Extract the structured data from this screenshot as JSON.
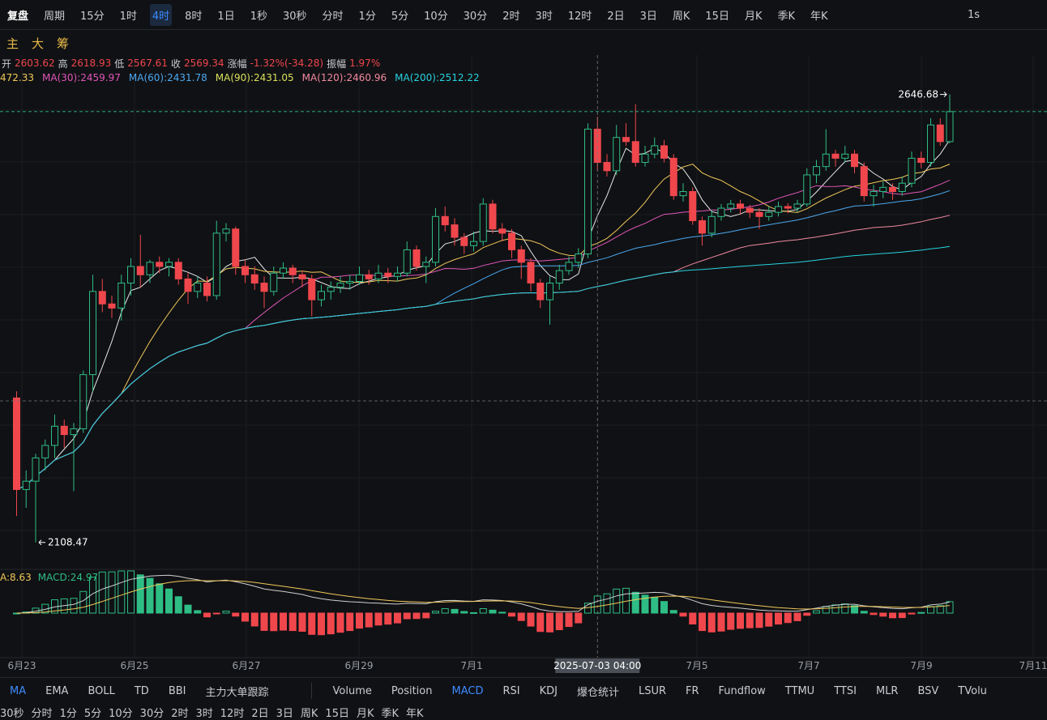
{
  "toolbar": {
    "items": [
      "复盘",
      "周期",
      "15分",
      "1时",
      "4时",
      "8时",
      "1日",
      "1秒",
      "30秒",
      "分时",
      "1分",
      "5分",
      "10分",
      "30分",
      "2时",
      "3时",
      "12时",
      "2日",
      "3日",
      "周K",
      "15日",
      "月K",
      "季K",
      "年K"
    ],
    "active": "4时",
    "right": "1s"
  },
  "drawbar": [
    "主",
    "大",
    "筹"
  ],
  "info": {
    "open_label": "开",
    "open": 2603.62,
    "high_label": "高",
    "high": 2618.93,
    "low_label": "低",
    "low": 2567.61,
    "close_label": "收",
    "close": 2569.34,
    "change_label": "涨幅",
    "change": "-1.32%(-34.28)",
    "amp_label": "振幅",
    "amp": "1.97%"
  },
  "ma_legend": [
    "472.33",
    "MA(30):2459.97",
    "MA(60):2431.78",
    "MA(90):2431.05",
    "MA(120):2460.96",
    "MA(200):2512.22"
  ],
  "chart": {
    "ylim": [
      2079,
      2692
    ],
    "candles": [
      [
        2282,
        2290,
        2140,
        2172
      ],
      [
        2172,
        2195,
        2150,
        2182
      ],
      [
        2182,
        2215,
        2108.47,
        2210
      ],
      [
        2210,
        2232,
        2195,
        2225
      ],
      [
        2225,
        2262,
        2210,
        2248
      ],
      [
        2248,
        2256,
        2222,
        2238
      ],
      [
        2238,
        2252,
        2170,
        2245
      ],
      [
        2245,
        2315,
        2240,
        2310
      ],
      [
        2310,
        2430,
        2290,
        2410
      ],
      [
        2410,
        2425,
        2385,
        2395
      ],
      [
        2395,
        2405,
        2378,
        2390
      ],
      [
        2390,
        2430,
        2375,
        2420
      ],
      [
        2420,
        2450,
        2405,
        2440
      ],
      [
        2440,
        2478,
        2415,
        2430
      ],
      [
        2430,
        2448,
        2420,
        2445
      ],
      [
        2445,
        2452,
        2432,
        2440
      ],
      [
        2440,
        2450,
        2428,
        2445
      ],
      [
        2445,
        2450,
        2418,
        2425
      ],
      [
        2425,
        2432,
        2395,
        2410
      ],
      [
        2410,
        2428,
        2402,
        2420
      ],
      [
        2420,
        2428,
        2398,
        2405
      ],
      [
        2405,
        2495,
        2400,
        2480
      ],
      [
        2480,
        2492,
        2470,
        2485
      ],
      [
        2485,
        2488,
        2430,
        2440
      ],
      [
        2440,
        2448,
        2420,
        2430
      ],
      [
        2430,
        2440,
        2412,
        2420
      ],
      [
        2420,
        2428,
        2390,
        2410
      ],
      [
        2410,
        2440,
        2405,
        2432
      ],
      [
        2432,
        2445,
        2425,
        2438
      ],
      [
        2438,
        2442,
        2420,
        2430
      ],
      [
        2430,
        2435,
        2415,
        2425
      ],
      [
        2425,
        2430,
        2380,
        2400
      ],
      [
        2400,
        2418,
        2392,
        2410
      ],
      [
        2410,
        2422,
        2400,
        2415
      ],
      [
        2415,
        2428,
        2408,
        2420
      ],
      [
        2420,
        2430,
        2412,
        2422
      ],
      [
        2422,
        2440,
        2418,
        2430
      ],
      [
        2430,
        2436,
        2418,
        2425
      ],
      [
        2425,
        2442,
        2420,
        2432
      ],
      [
        2432,
        2438,
        2420,
        2428
      ],
      [
        2428,
        2440,
        2422,
        2432
      ],
      [
        2432,
        2470,
        2428,
        2460
      ],
      [
        2460,
        2465,
        2435,
        2440
      ],
      [
        2440,
        2452,
        2420,
        2445
      ],
      [
        2445,
        2510,
        2440,
        2500
      ],
      [
        2500,
        2512,
        2482,
        2490
      ],
      [
        2490,
        2498,
        2465,
        2475
      ],
      [
        2475,
        2480,
        2455,
        2465
      ],
      [
        2465,
        2482,
        2458,
        2470
      ],
      [
        2470,
        2522,
        2465,
        2515
      ],
      [
        2515,
        2520,
        2480,
        2485
      ],
      [
        2485,
        2492,
        2470,
        2480
      ],
      [
        2480,
        2485,
        2450,
        2460
      ],
      [
        2460,
        2465,
        2425,
        2445
      ],
      [
        2445,
        2450,
        2410,
        2420
      ],
      [
        2420,
        2425,
        2390,
        2400
      ],
      [
        2400,
        2428,
        2370,
        2420
      ],
      [
        2420,
        2442,
        2412,
        2435
      ],
      [
        2435,
        2452,
        2430,
        2445
      ],
      [
        2445,
        2462,
        2438,
        2455
      ],
      [
        2455,
        2612,
        2450,
        2605
      ],
      [
        2605,
        2620,
        2555,
        2565
      ],
      [
        2565,
        2575,
        2548,
        2555
      ],
      [
        2555,
        2610,
        2550,
        2595
      ],
      [
        2595,
        2612,
        2585,
        2590
      ],
      [
        2590,
        2635,
        2560,
        2565
      ],
      [
        2565,
        2585,
        2560,
        2575
      ],
      [
        2575,
        2595,
        2570,
        2585
      ],
      [
        2585,
        2592,
        2565,
        2570
      ],
      [
        2570,
        2575,
        2520,
        2525
      ],
      [
        2525,
        2540,
        2518,
        2530
      ],
      [
        2530,
        2535,
        2490,
        2495
      ],
      [
        2495,
        2500,
        2465,
        2480
      ],
      [
        2480,
        2508,
        2475,
        2500
      ],
      [
        2500,
        2515,
        2495,
        2510
      ],
      [
        2510,
        2520,
        2505,
        2515
      ],
      [
        2515,
        2520,
        2502,
        2510
      ],
      [
        2510,
        2514,
        2498,
        2505
      ],
      [
        2505,
        2510,
        2485,
        2500
      ],
      [
        2500,
        2512,
        2495,
        2505
      ],
      [
        2505,
        2518,
        2500,
        2512
      ],
      [
        2512,
        2516,
        2504,
        2510
      ],
      [
        2510,
        2520,
        2505,
        2515
      ],
      [
        2515,
        2558,
        2512,
        2550
      ],
      [
        2550,
        2568,
        2540,
        2560
      ],
      [
        2560,
        2605,
        2555,
        2575
      ],
      [
        2575,
        2580,
        2560,
        2570
      ],
      [
        2570,
        2585,
        2565,
        2575
      ],
      [
        2575,
        2580,
        2552,
        2560
      ],
      [
        2560,
        2565,
        2518,
        2525
      ],
      [
        2525,
        2538,
        2512,
        2530
      ],
      [
        2530,
        2542,
        2522,
        2535
      ],
      [
        2535,
        2540,
        2520,
        2530
      ],
      [
        2530,
        2548,
        2525,
        2540
      ],
      [
        2540,
        2578,
        2535,
        2570
      ],
      [
        2570,
        2578,
        2558,
        2565
      ],
      [
        2565,
        2618,
        2560,
        2610
      ],
      [
        2610,
        2618,
        2585,
        2590
      ],
      [
        2590,
        2646.68,
        2588,
        2626
      ]
    ],
    "x_labels": [
      "6月23",
      "6月25",
      "6月27",
      "6月29",
      "7月1",
      "7月5",
      "7月7",
      "7月9",
      "7月11"
    ],
    "crosshair_label": "2025-07-03 04:00"
  },
  "macd_legend": [
    "A:8.63",
    "MACD:24.97"
  ],
  "indicators": [
    "MA",
    "EMA",
    "BOLL",
    "TD",
    "BBI",
    "主力大单跟踪"
  ],
  "sub_indicators": [
    "Volume",
    "Position",
    "MACD",
    "RSI",
    "KDJ",
    "爆仓统计",
    "LSUR",
    "FR",
    "Fundflow",
    "TTMU",
    "TTSI",
    "MLR",
    "BSV",
    "TVolu"
  ],
  "bottom_periods": [
    "30秒",
    "分时",
    "1分",
    "5分",
    "10分",
    "30分",
    "2时",
    "3时",
    "12时",
    "2日",
    "3日",
    "周K",
    "15日",
    "月K",
    "季K",
    "年K"
  ]
}
